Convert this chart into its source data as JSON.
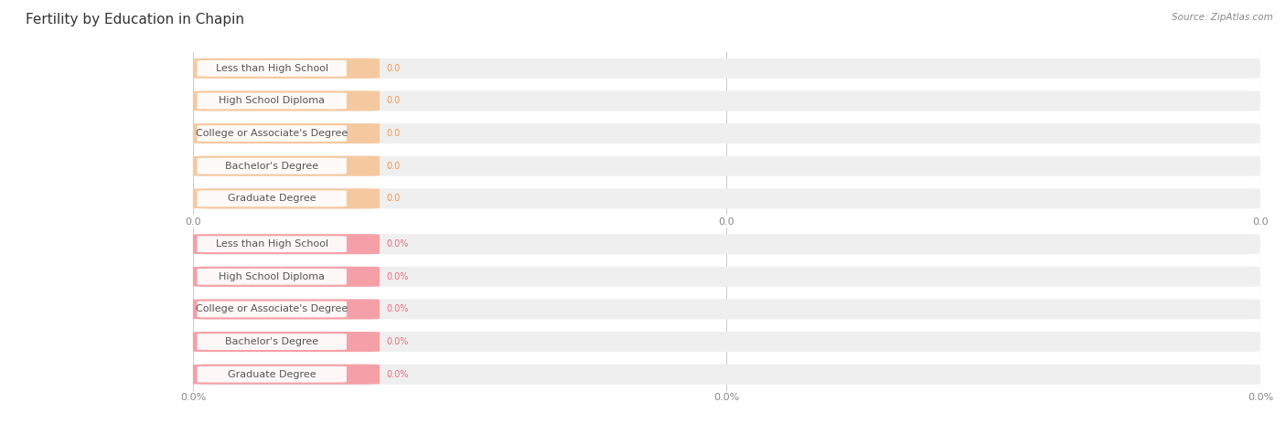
{
  "title": "Fertility by Education in Chapin",
  "source": "Source: ZipAtlas.com",
  "categories": [
    "Less than High School",
    "High School Diploma",
    "College or Associate's Degree",
    "Bachelor's Degree",
    "Graduate Degree"
  ],
  "values_top": [
    0.0,
    0.0,
    0.0,
    0.0,
    0.0
  ],
  "values_bottom": [
    0.0,
    0.0,
    0.0,
    0.0,
    0.0
  ],
  "bar_color_top": "#F5C9A0",
  "bar_color_bottom": "#F5A0A8",
  "label_color_top": "#E8975A",
  "label_color_bottom": "#E07080",
  "bg_bar_color": "#EFEFEF",
  "text_color_label": "#555555",
  "tick_labels_top": [
    "0.0",
    "0.0",
    "0.0"
  ],
  "tick_labels_bottom": [
    "0.0%",
    "0.0%",
    "0.0%"
  ],
  "figsize": [
    14.06,
    4.75
  ],
  "dpi": 100,
  "background_color": "#FFFFFF",
  "grid_color": "#CCCCCC",
  "title_fontsize": 11,
  "label_fontsize": 8,
  "value_fontsize": 7,
  "tick_fontsize": 8,
  "source_fontsize": 7.5
}
